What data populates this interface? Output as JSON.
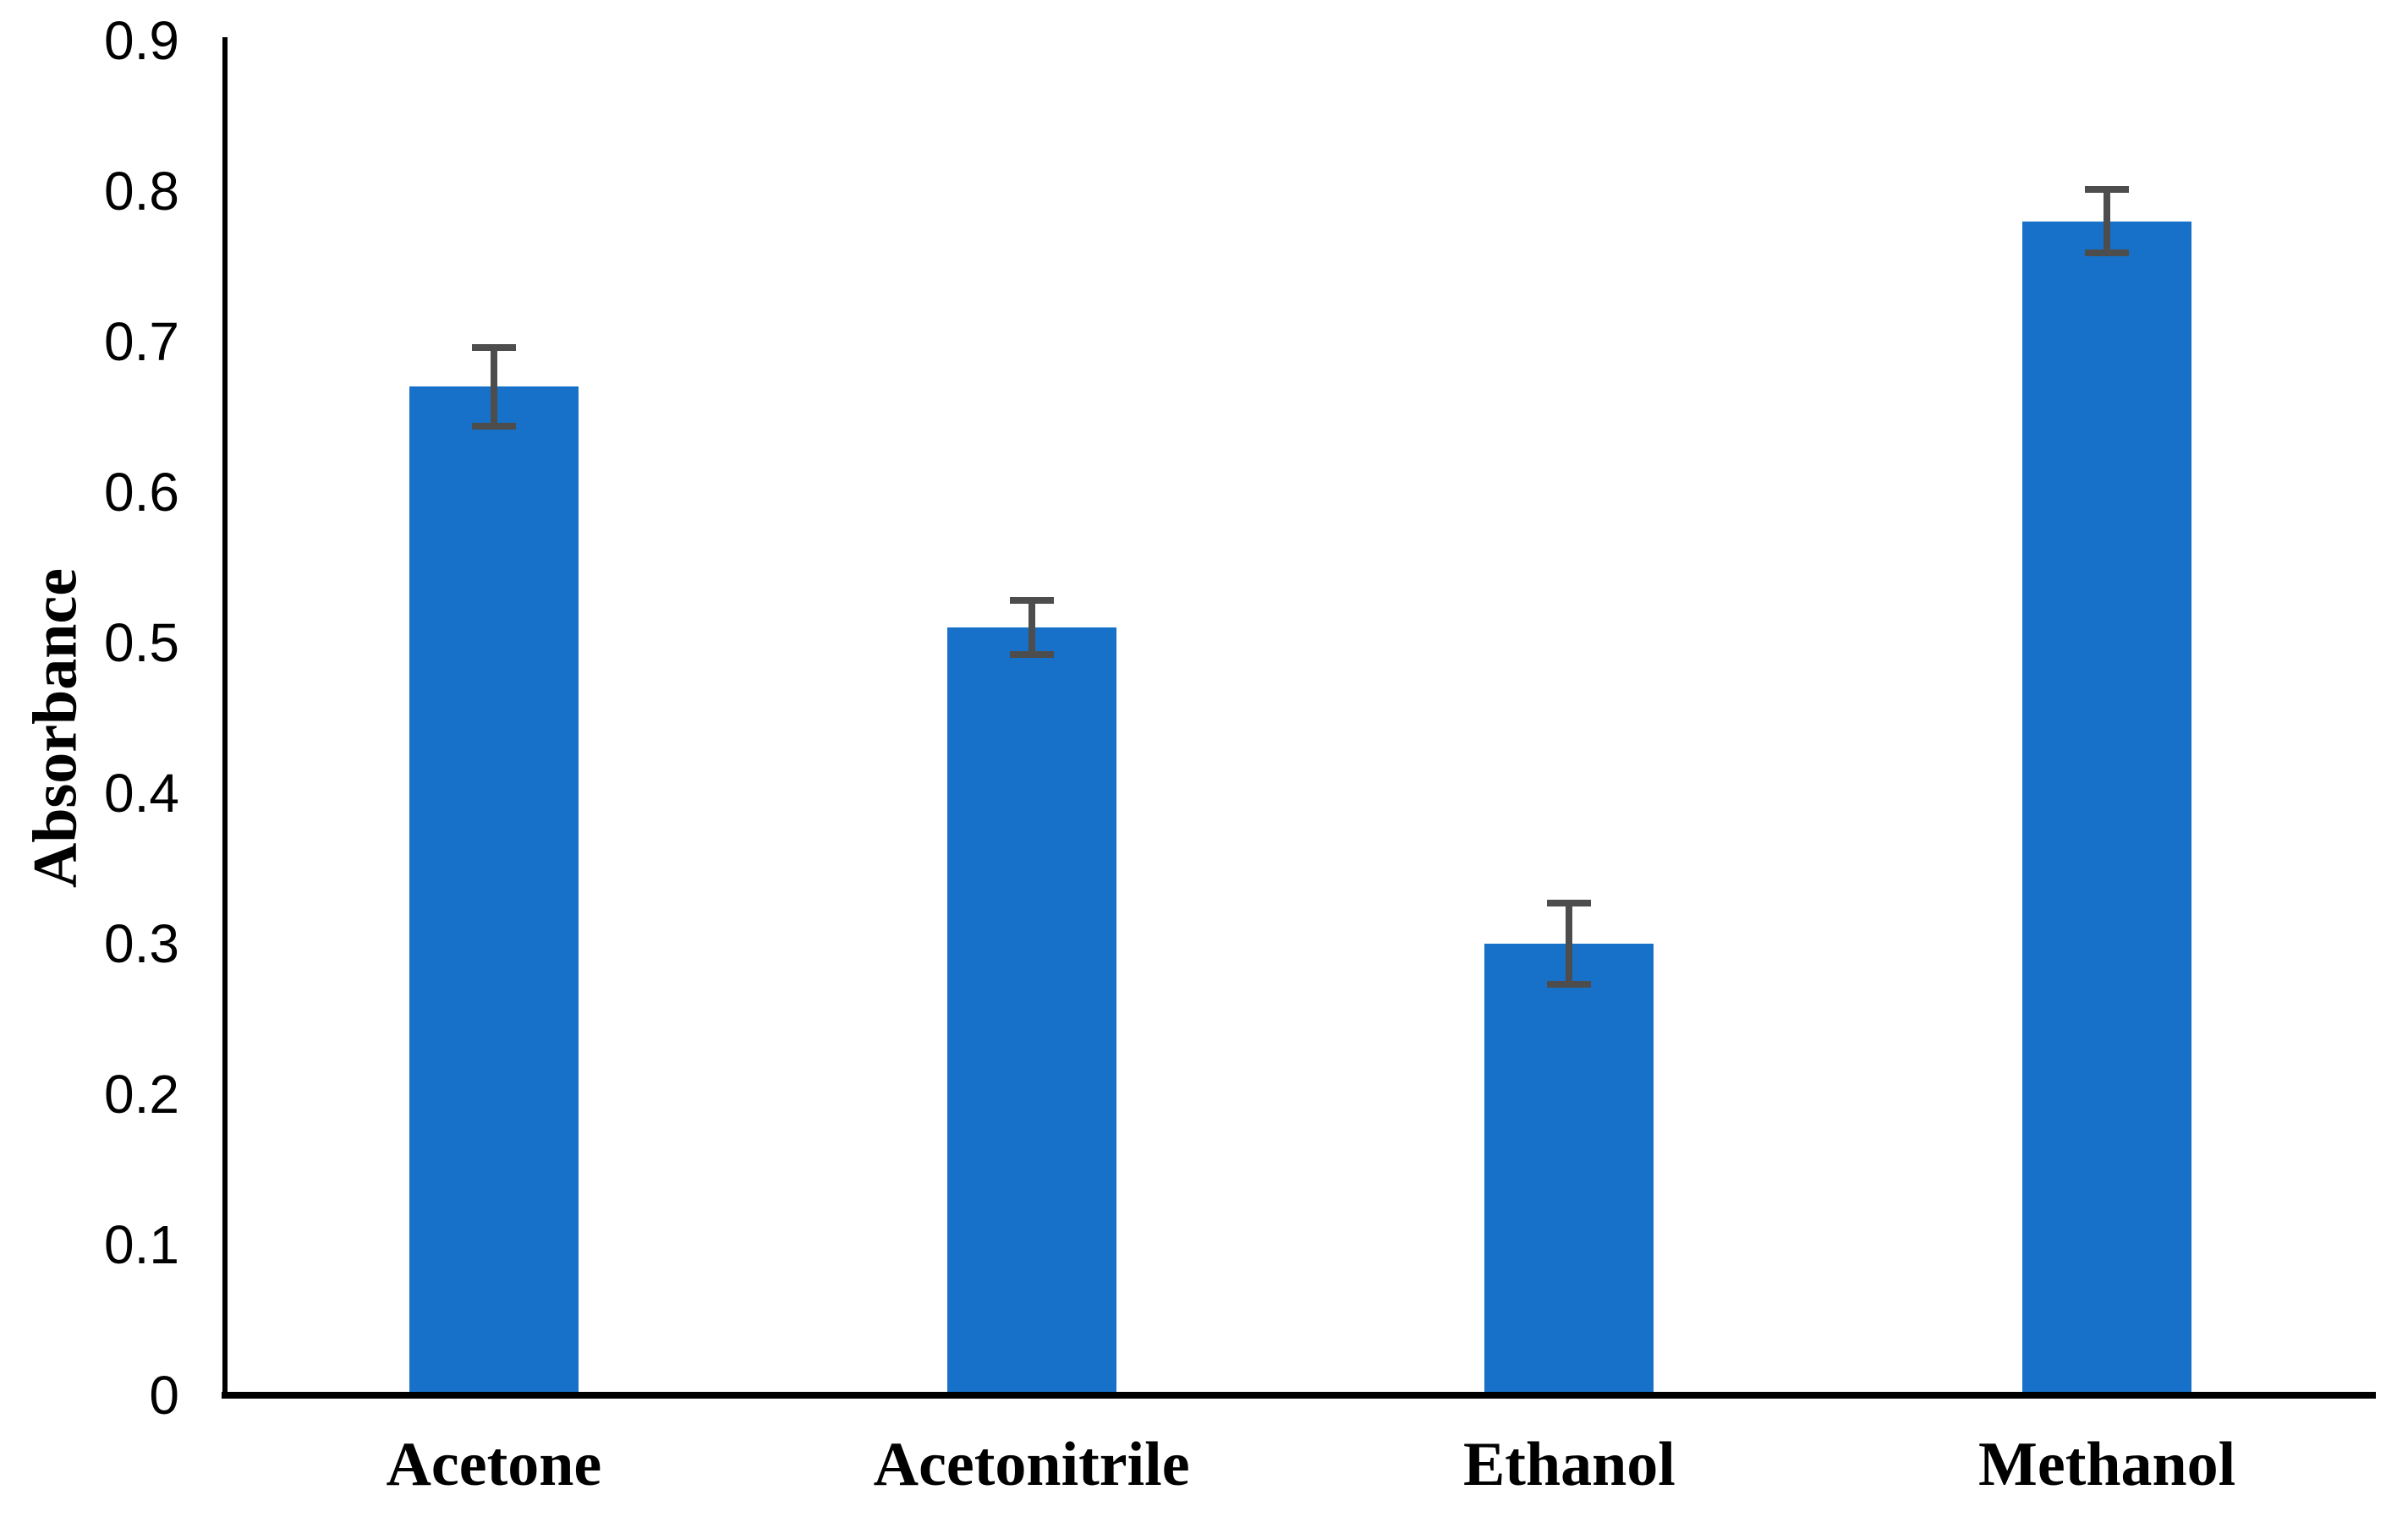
{
  "chart_data": {
    "type": "bar",
    "title": "",
    "categories": [
      "Acetone",
      "Acetonitrile",
      "Ethanol",
      "Methanol"
    ],
    "values": [
      0.67,
      0.51,
      0.3,
      0.78
    ],
    "error_bars": [
      0.026,
      0.018,
      0.027,
      0.021
    ],
    "xlabel": "",
    "ylabel": "Absorbance",
    "ylim": [
      0,
      0.9
    ],
    "ytick_step": 0.1,
    "yticks": [
      "0",
      "0.1",
      "0.2",
      "0.3",
      "0.4",
      "0.5",
      "0.6",
      "0.7",
      "0.8",
      "0.9"
    ],
    "grid": false,
    "legend": false,
    "bar_color": "#1771C9",
    "error_bar_color": "#4D4D4D",
    "axis_color": "#000000",
    "text_color": "#000000"
  }
}
